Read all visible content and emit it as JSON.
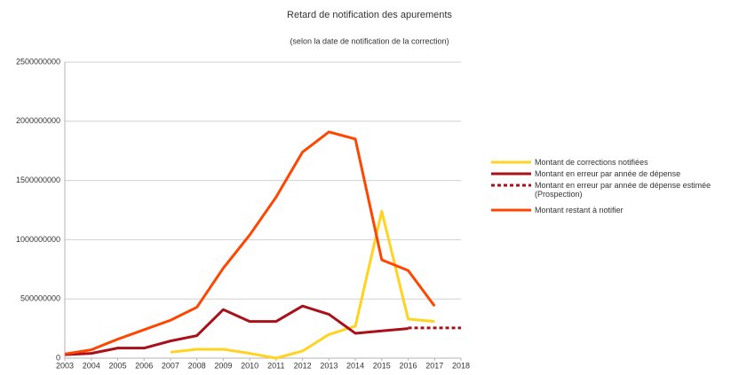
{
  "chart_data": {
    "type": "line",
    "title": "Retard de notification des apurements",
    "subtitle": "(selon la date de notification de la correction)",
    "x": [
      2003,
      2004,
      2005,
      2006,
      2007,
      2008,
      2009,
      2010,
      2011,
      2012,
      2013,
      2014,
      2015,
      2016,
      2017,
      2018
    ],
    "xlim": [
      2003,
      2018
    ],
    "xticks": [
      2003,
      2004,
      2005,
      2006,
      2007,
      2008,
      2009,
      2010,
      2011,
      2012,
      2013,
      2014,
      2015,
      2016,
      2017,
      2018
    ],
    "ylim": [
      0,
      2500000000
    ],
    "yticks": [
      0,
      500000000,
      1000000000,
      1500000000,
      2000000000,
      2500000000
    ],
    "grid": true,
    "legend": "right",
    "series": [
      {
        "name": "Montant de corrections notifiées",
        "color": "#ffd320",
        "dashed": false,
        "values": [
          null,
          null,
          null,
          null,
          50000000,
          75000000,
          75000000,
          40000000,
          0,
          60000000,
          200000000,
          270000000,
          1240000000,
          330000000,
          310000000,
          null
        ]
      },
      {
        "name": "Montant en erreur par année de dépense",
        "color": "#a8101a",
        "dashed": false,
        "values": [
          30000000,
          40000000,
          85000000,
          85000000,
          145000000,
          190000000,
          410000000,
          310000000,
          310000000,
          440000000,
          370000000,
          210000000,
          230000000,
          250000000,
          null,
          null
        ]
      },
      {
        "name": "Montant en erreur par année de dépense estimée (Prospection)",
        "color": "#a8101a",
        "dashed": true,
        "values": [
          null,
          null,
          null,
          null,
          null,
          null,
          null,
          null,
          null,
          null,
          null,
          null,
          null,
          255000000,
          255000000,
          255000000
        ]
      },
      {
        "name": "Montant restant à notifier",
        "color": "#ff4500",
        "dashed": false,
        "values": [
          35000000,
          70000000,
          160000000,
          240000000,
          320000000,
          430000000,
          760000000,
          1040000000,
          1360000000,
          1740000000,
          1910000000,
          1850000000,
          830000000,
          740000000,
          440000000,
          null
        ]
      }
    ]
  }
}
